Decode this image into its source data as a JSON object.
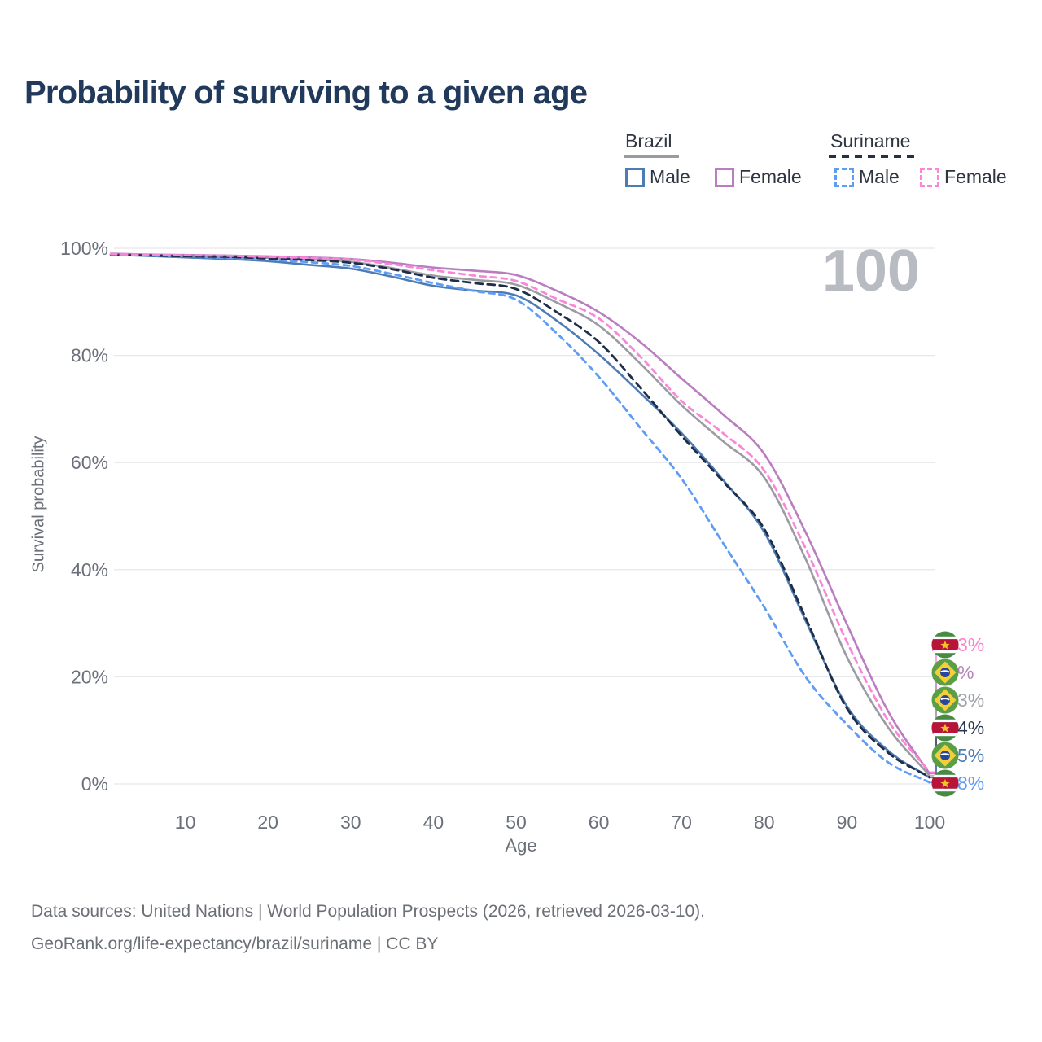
{
  "title": "Probability of surviving to a given age",
  "watermark_age": "100",
  "legend": {
    "groups": [
      {
        "label": "Brazil",
        "line_style": "solid",
        "items": [
          {
            "label": "Male",
            "color": "#4d7cb5"
          },
          {
            "label": "Female",
            "color": "#ba7dc0"
          }
        ]
      },
      {
        "label": "Suriname",
        "line_style": "dashed",
        "items": [
          {
            "label": "Male",
            "color": "#5f9cf6"
          },
          {
            "label": "Female",
            "color": "#fb86d9"
          }
        ]
      }
    ]
  },
  "chart_data": {
    "type": "line",
    "title": "Probability of surviving to a given age",
    "xlabel": "Age",
    "ylabel": "Survival probability",
    "xlim": [
      0,
      100
    ],
    "ylim": [
      0,
      100
    ],
    "grid": "horizontal",
    "legend_position": "top-right",
    "xticks": [
      10,
      20,
      30,
      40,
      50,
      60,
      70,
      80,
      90,
      100
    ],
    "yticks": [
      {
        "value": 0,
        "label": "0%"
      },
      {
        "value": 20,
        "label": "20%"
      },
      {
        "value": 40,
        "label": "40%"
      },
      {
        "value": 60,
        "label": "60%"
      },
      {
        "value": 80,
        "label": "80%"
      },
      {
        "value": 100,
        "label": "100%"
      }
    ],
    "x": [
      1,
      5,
      10,
      15,
      20,
      25,
      30,
      35,
      40,
      45,
      50,
      55,
      60,
      65,
      70,
      75,
      80,
      85,
      90,
      95,
      100
    ],
    "series": [
      {
        "key": "brazil_male",
        "name": "Brazil Male",
        "color": "#4d7cb5",
        "dashed": false,
        "values": [
          98.8,
          98.6,
          98.3,
          98.0,
          97.6,
          96.9,
          96.2,
          94.7,
          93.0,
          92.1,
          91.2,
          86.4,
          80.2,
          73.0,
          65.5,
          56.8,
          47.0,
          30.5,
          14.5,
          6.2,
          1.15
        ]
      },
      {
        "key": "brazil_total",
        "name": "Brazil Both sexes",
        "color": "#9b9ba3",
        "dashed": false,
        "values": [
          98.9,
          98.8,
          98.6,
          98.5,
          98.2,
          97.9,
          97.5,
          96.3,
          94.9,
          94.1,
          93.2,
          89.8,
          85.6,
          78.5,
          70.7,
          64.0,
          57.2,
          42.0,
          23.7,
          10.5,
          1.53
        ]
      },
      {
        "key": "brazil_female",
        "name": "Brazil Female",
        "color": "#ba7dc0",
        "dashed": false,
        "values": [
          99.0,
          98.85,
          98.75,
          98.65,
          98.5,
          98.3,
          98.0,
          97.3,
          96.4,
          95.8,
          95.0,
          92.0,
          88.1,
          82.5,
          75.7,
          69.0,
          61.6,
          47.0,
          29.8,
          13.5,
          1.9
        ]
      },
      {
        "key": "suriname_male",
        "name": "Suriname Male",
        "color": "#5f9cf6",
        "dashed": true,
        "values": [
          98.8,
          98.7,
          98.4,
          98.2,
          97.9,
          97.4,
          96.7,
          95.2,
          93.5,
          92.0,
          90.4,
          84.0,
          76.0,
          66.5,
          57.0,
          45.0,
          33.0,
          20.0,
          11.1,
          4.0,
          0.28
        ]
      },
      {
        "key": "suriname_total",
        "name": "Suriname Both sexes",
        "color": "#1f2d47",
        "dashed": true,
        "values": [
          98.8,
          98.7,
          98.5,
          98.4,
          98.1,
          97.8,
          97.3,
          96.1,
          94.5,
          93.5,
          92.4,
          88.0,
          82.5,
          74.0,
          65.0,
          56.5,
          47.6,
          31.0,
          14.1,
          5.8,
          1.24
        ]
      },
      {
        "key": "suriname_female",
        "name": "Suriname Female",
        "color": "#fb86d9",
        "dashed": true,
        "values": [
          98.9,
          98.8,
          98.7,
          98.6,
          98.4,
          98.2,
          97.9,
          97.0,
          95.9,
          94.9,
          93.9,
          90.5,
          86.9,
          79.8,
          71.5,
          65.5,
          58.5,
          44.0,
          26.5,
          11.8,
          2.23
        ]
      }
    ],
    "end_labels": [
      {
        "series": "suriname_female",
        "text": "2.23%",
        "value": 2.23,
        "country": "suriname",
        "text_color": "#fb7fd0"
      },
      {
        "series": "brazil_female",
        "text": "1.9%",
        "value": 1.9,
        "country": "brazil",
        "text_color": "#b583bb"
      },
      {
        "series": "brazil_total",
        "text": "1.53%",
        "value": 1.53,
        "country": "brazil",
        "text_color": "#9fa1a9"
      },
      {
        "series": "suriname_total",
        "text": "1.24%",
        "value": 1.24,
        "country": "suriname",
        "text_color": "#2b3950"
      },
      {
        "series": "brazil_male",
        "text": "1.15%",
        "value": 1.15,
        "country": "brazil",
        "text_color": "#4d7cb5"
      },
      {
        "series": "suriname_male",
        "text": "0.28%",
        "value": 0.28,
        "country": "suriname",
        "text_color": "#5f9cf6"
      }
    ],
    "flag_colors": {
      "suriname": {
        "green": "#468b41",
        "white": "#ffffff",
        "red": "#b8143a",
        "star": "#f0c51d"
      },
      "brazil": {
        "green": "#5a9e46",
        "yellow": "#f3cf3a",
        "blue": "#28479c",
        "band": "#ffffff"
      }
    }
  },
  "footer": {
    "line1": "Data sources: United Nations | World Population Prospects (2026, retrieved 2026-03-10).",
    "line2": "GeoRank.org/life-expectancy/brazil/suriname | CC BY"
  }
}
